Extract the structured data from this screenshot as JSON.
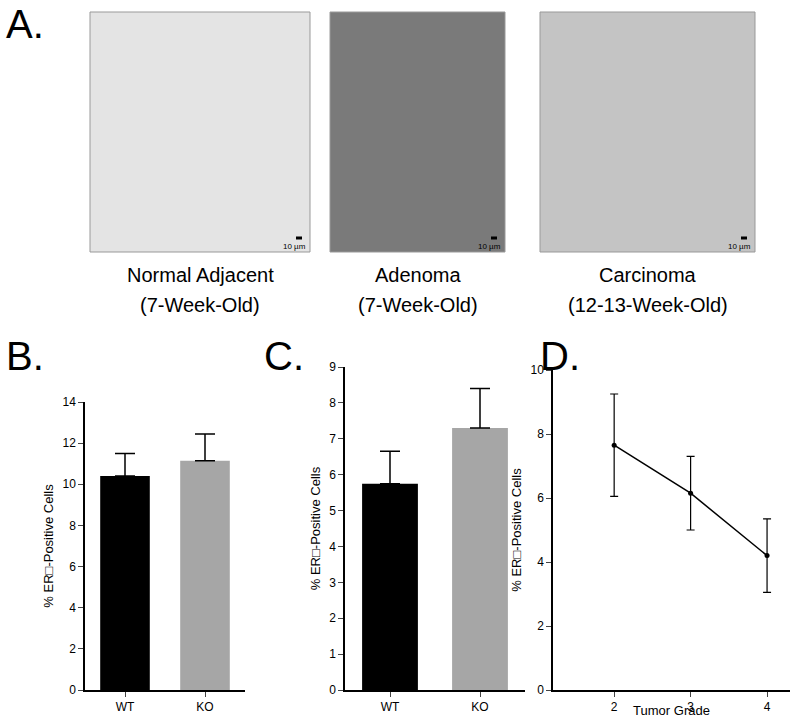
{
  "panel_a": {
    "label": "A.",
    "images": [
      {
        "caption": [
          "Normal Adjacent",
          "(7-Week-Old)"
        ],
        "scale_bar": "10 µm"
      },
      {
        "caption": [
          "Adenoma",
          "(7-Week-Old)"
        ],
        "scale_bar": "10 µm"
      },
      {
        "caption": [
          "Carcinoma",
          "(12-13-Week-Old)"
        ],
        "scale_bar": "10 µm"
      }
    ]
  },
  "chart_data": [
    {
      "panel": "B.",
      "type": "bar",
      "categories": [
        "WT",
        "KO"
      ],
      "values": [
        10.4,
        11.15
      ],
      "errors": [
        1.1,
        1.3
      ],
      "colors": [
        "#000000",
        "#a6a6a6"
      ],
      "ylabel": "% ER□-Positive Cells",
      "ylim": [
        0,
        14
      ],
      "yticks": [
        0,
        2,
        4,
        6,
        8,
        10,
        12,
        14
      ]
    },
    {
      "panel": "C.",
      "type": "bar",
      "categories": [
        "WT",
        "KO"
      ],
      "values": [
        5.75,
        7.3
      ],
      "errors": [
        0.9,
        1.1
      ],
      "colors": [
        "#000000",
        "#a6a6a6"
      ],
      "ylabel": "% ER□-Positive Cells",
      "ylim": [
        0,
        9
      ],
      "yticks": [
        0,
        1,
        2,
        3,
        4,
        5,
        6,
        7,
        8,
        9
      ]
    },
    {
      "panel": "D.",
      "type": "line",
      "x": [
        2,
        3,
        4
      ],
      "values": [
        7.65,
        6.15,
        4.2
      ],
      "errors": [
        1.6,
        1.15,
        1.15
      ],
      "color": "#000000",
      "marker": "circle",
      "xlabel": "Tumor Grade",
      "ylabel": "% ER□-Positive Cells",
      "xlim": [
        1.2,
        4.3
      ],
      "xticks": [
        2,
        3,
        4
      ],
      "ylim": [
        0,
        10
      ],
      "yticks": [
        0,
        2,
        4,
        6,
        8,
        10
      ]
    }
  ]
}
